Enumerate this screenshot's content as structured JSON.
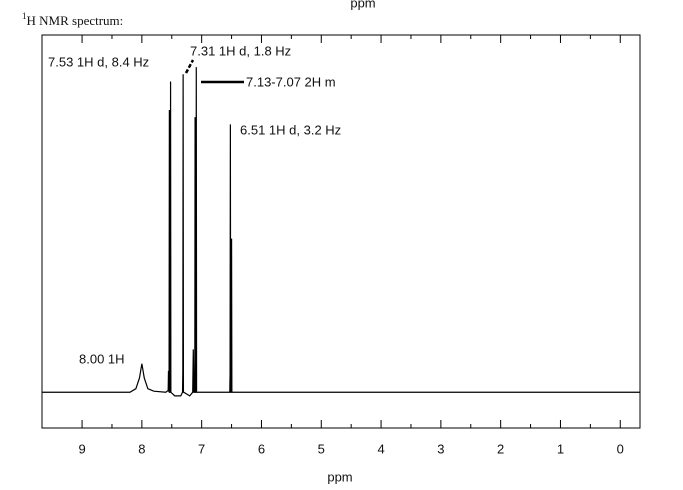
{
  "chart_data": {
    "type": "line",
    "title": {
      "sup": "1",
      "text": "H NMR spectrum:"
    },
    "top_label": "ppm",
    "x_label": "ppm",
    "x": [
      9.67,
      8.2,
      8.1,
      8.04,
      8.0,
      7.96,
      7.9,
      7.8,
      7.6,
      7.56,
      7.555,
      7.55,
      7.545,
      7.54,
      7.535,
      7.525,
      7.52,
      7.515,
      7.45,
      7.35,
      7.32,
      7.315,
      7.31,
      7.305,
      7.3,
      7.2,
      7.15,
      7.14,
      7.13,
      7.115,
      7.11,
      7.105,
      7.095,
      7.09,
      7.085,
      7.07,
      7.0,
      6.53,
      6.525,
      6.52,
      6.515,
      6.505,
      6.5,
      6.495,
      6.45,
      -0.33
    ],
    "series": [
      {
        "color": "#000000",
        "values": [
          0,
          0,
          1,
          4,
          8,
          4,
          1,
          0.3,
          0,
          0.5,
          6,
          0.5,
          0,
          79,
          0,
          0,
          87,
          0,
          -1,
          -1,
          0,
          6,
          89,
          0,
          0,
          -1,
          0,
          12,
          0,
          0,
          77,
          0,
          0,
          91,
          0,
          0,
          0,
          0,
          5,
          75,
          0,
          0,
          43,
          0,
          0,
          0
        ]
      }
    ],
    "xlim": [
      9.67,
      -0.33
    ],
    "ylim": [
      -10,
      100
    ],
    "xticks": [
      9,
      8,
      7,
      6,
      5,
      4,
      3,
      2,
      1,
      0
    ],
    "annotations": [
      "7.53 1H d, 8.4 Hz",
      "7.31 1H d, 1.8 Hz",
      "7.13-7.07 2H m",
      "6.51 1H d, 3.2 Hz",
      "8.00 1H"
    ]
  }
}
